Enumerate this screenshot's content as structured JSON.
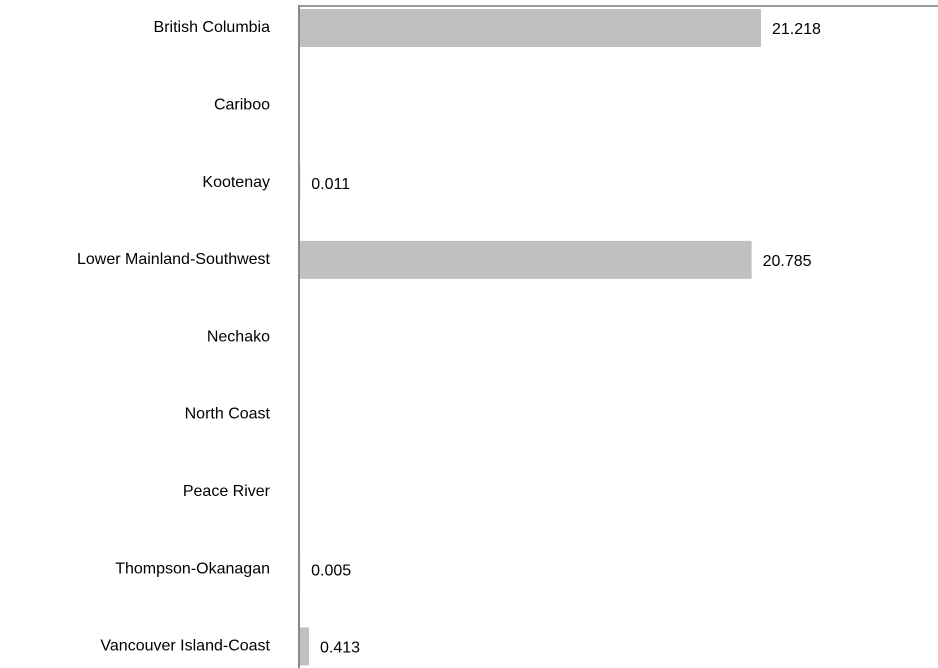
{
  "chart_data": {
    "type": "hbar",
    "categories": [
      "British Columbia",
      "Cariboo",
      "Kootenay",
      "Lower Mainland-Southwest",
      "Nechako",
      "North Coast",
      "Peace River",
      "Thompson-Okanagan",
      "Vancouver Island-Coast"
    ],
    "values": [
      21.218,
      null,
      0.011,
      20.785,
      null,
      null,
      null,
      0.005,
      0.413
    ],
    "color": "#c0c0c0"
  }
}
